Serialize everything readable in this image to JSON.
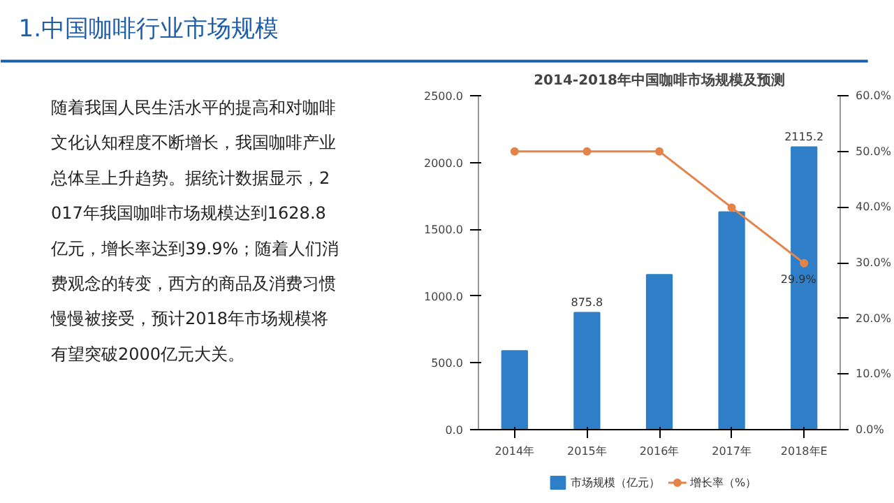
{
  "chart_data": {
    "type": "bar",
    "title": "1.中国咖啡行业市场规模",
    "subtitle": "2014-2018年中国咖啡市场规模及预测",
    "annotations": [
      "随着我国人民生活水平的提高和对咖啡文化认知程度不断增长，我国咖啡产业总体呈上升趋势。据统计数据显示，2017年我国咖啡市场规模达到1628.8亿元，增长率达到39.9%；随着人们消费观念的转变，西方的商品及消费习惯慢慢被接受，预计2018年市场规模将有望突破2000亿元大关。"
    ],
    "categories": [
      "2014年",
      "2015年",
      "2016年",
      "2017年",
      "2018年E"
    ],
    "series": [
      {
        "name": "市场规模（亿元）",
        "color": "#2e7fc8",
        "values": [
          590,
          875.8,
          1160,
          1628.8,
          2115.2
        ],
        "value_labels": [
          null,
          "875.8",
          null,
          null,
          "2115.2"
        ]
      },
      {
        "name": "增长率（%）",
        "type": "line",
        "axis": "y2",
        "color": "#e4834a",
        "values": [
          50,
          50,
          50,
          39.9,
          29.9
        ],
        "marker": "circle",
        "value_labels": [
          null,
          null,
          null,
          null,
          "29.9%"
        ]
      }
    ],
    "ylim": [
      0,
      2500
    ],
    "yticks": [
      {
        "value": 0,
        "label": "0.0"
      },
      {
        "value": 500,
        "label": "500.0"
      },
      {
        "value": 1000,
        "label": "1000.0"
      },
      {
        "value": 1500,
        "label": "1500.0"
      },
      {
        "value": 2000,
        "label": "2000.0"
      },
      {
        "value": 2500,
        "label": "2500.0"
      }
    ],
    "y2lim": [
      0,
      60
    ],
    "y2ticks": [
      {
        "value": 0,
        "label": "0.0%"
      },
      {
        "value": 10,
        "label": "10.0%"
      },
      {
        "value": 20,
        "label": "20.0%"
      },
      {
        "value": 30,
        "label": "30.0%"
      },
      {
        "value": 40,
        "label": "40.0%"
      },
      {
        "value": 50,
        "label": "50.0%"
      },
      {
        "value": 60,
        "label": "60.0%"
      }
    ],
    "grid": false,
    "legend": "bottom"
  }
}
